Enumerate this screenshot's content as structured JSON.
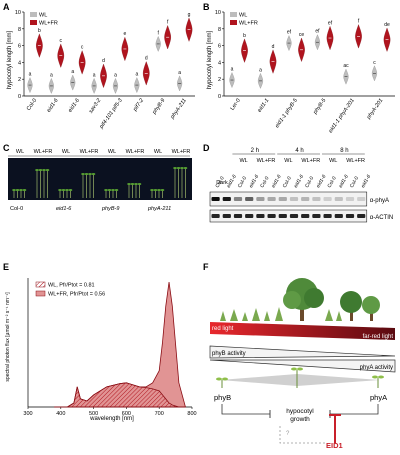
{
  "panels": {
    "A": {
      "letter": "A",
      "ylabel": "hypocotyl length [mm]",
      "legend": [
        "WL",
        "WL+FR"
      ],
      "genotypes": [
        "Col-0",
        "eid1-6",
        "eid1-6",
        "sav3-2",
        "pif4-101 pif5-3",
        "pif7-2",
        "phyB-9",
        "phyA-211"
      ],
      "yticks": [
        "0",
        "2",
        "4",
        "6",
        "8",
        "10"
      ]
    },
    "B": {
      "letter": "B",
      "ylabel": "hypocotyl length [mm]",
      "legend": [
        "WL",
        "WL+FR"
      ],
      "genotypes": [
        "Ler-0",
        "eid1-1",
        "eid1-1 phyB-5",
        "phyB-5",
        "eid1-1 phyA-201",
        "phyA-201"
      ],
      "yticks": [
        "0",
        "2",
        "4",
        "6",
        "8",
        "10"
      ]
    },
    "C": {
      "letter": "C",
      "header": [
        "WL",
        "WL+FR",
        "WL",
        "WL+FR",
        "WL",
        "WL+FR",
        "WL",
        "WL+FR"
      ],
      "labels": [
        "Col-0",
        "eid1-6",
        "phyB-9",
        "phyA-211"
      ]
    },
    "D": {
      "letter": "D",
      "times": [
        "2 h",
        "4 h",
        "8 h"
      ],
      "conds": [
        "WL",
        "WL+FR",
        "WL",
        "WL+FR",
        "WL",
        "WL+FR"
      ],
      "lanes": [
        "Col-0",
        "eid1-6",
        "Col-0",
        "eid1-6",
        "Col-0",
        "eid1-6",
        "Col-0",
        "eid1-6",
        "Col-0",
        "eid1-6",
        "Col-0",
        "eid1-6",
        "Col-0",
        "eid1-6"
      ],
      "dark": "Dark",
      "antibodies": [
        "α-phyA",
        "α-ACTIN"
      ]
    },
    "E": {
      "letter": "E",
      "ylabel": "spectral photon flux [µmol m⁻² s⁻¹ nm⁻¹]",
      "xlabel": "wavelength [nm]",
      "legend": [
        "WL, Pfr/Ptot = 0.81",
        "WL+FR, Pfr/Ptot = 0.56"
      ],
      "xticks": [
        "300",
        "400",
        "500",
        "600",
        "700",
        "800"
      ]
    },
    "F": {
      "letter": "F",
      "red_light": "red light",
      "far_red_light": "far-red light",
      "phyB_activity": "phyB activity",
      "phyA_activity": "phyA activity",
      "phyB": "phyB",
      "phyA": "phyA",
      "hypocotyl": "hypocotyl",
      "growth": "growth",
      "question": "?",
      "eid1": "EID1"
    }
  },
  "colors": {
    "wl": "#bdbdbd",
    "fr": "#b0141e",
    "red": "#c8202a"
  },
  "chart_data": [
    {
      "type": "scatter",
      "ylabel": "hypocotyl length [mm]",
      "ylim": [
        0,
        10
      ],
      "categories": [
        "Col-0",
        "eid1-6",
        "eid1-6",
        "sav3-2",
        "pif4-101 pif5-3",
        "pif7-2",
        "phyB-9",
        "phyA-211"
      ],
      "series": [
        {
          "name": "WL",
          "values": [
            1.3,
            1.2,
            1.6,
            1.2,
            1.2,
            1.3,
            6.2,
            1.5
          ]
        },
        {
          "name": "WL+FR",
          "values": [
            6.0,
            4.8,
            4.0,
            2.4,
            5.6,
            2.7,
            7.0,
            7.9
          ]
        }
      ],
      "annotations": [
        "a",
        "b",
        "a",
        "c",
        "a",
        "c",
        "a",
        "d",
        "a",
        "e",
        "a",
        "d",
        "f",
        "f",
        "a",
        "g"
      ]
    },
    {
      "type": "scatter",
      "ylabel": "hypocotyl length [mm]",
      "ylim": [
        0,
        10
      ],
      "categories": [
        "Ler-0",
        "eid1-1",
        "eid1-1 phyB-5",
        "phyB-5",
        "eid1-1 phyA-201",
        "phyA-201"
      ],
      "series": [
        {
          "name": "WL",
          "values": [
            1.9,
            1.8,
            6.3,
            6.4,
            2.3,
            2.7
          ]
        },
        {
          "name": "WL+FR",
          "values": [
            5.4,
            4.1,
            5.5,
            6.9,
            7.1,
            6.7
          ]
        }
      ],
      "annotations": [
        "a",
        "b",
        "a",
        "d",
        "ef",
        "ce",
        "ef",
        "ef",
        "ac",
        "f",
        "c",
        "de"
      ]
    },
    {
      "type": "area",
      "xlabel": "wavelength [nm]",
      "ylabel": "spectral photon flux [µmol m⁻² s⁻¹ nm⁻¹]",
      "xlim": [
        300,
        800
      ],
      "ylim": [
        0,
        0.32
      ],
      "series": [
        {
          "name": "WL, Pfr/Ptot = 0.81",
          "x": [
            380,
            420,
            440,
            450,
            460,
            480,
            500,
            540,
            580,
            600,
            640,
            660,
            680,
            700,
            710,
            720,
            730,
            740,
            760,
            780
          ],
          "values": [
            0,
            0,
            0.01,
            0.05,
            0.02,
            0.015,
            0.03,
            0.05,
            0.058,
            0.06,
            0.05,
            0.048,
            0.045,
            0.04,
            0.03,
            0.02,
            0.01,
            0.005,
            0,
            0
          ]
        },
        {
          "name": "WL+FR, Pfr/Ptot = 0.56",
          "x": [
            380,
            420,
            440,
            450,
            460,
            480,
            500,
            540,
            580,
            600,
            640,
            660,
            680,
            700,
            710,
            720,
            730,
            740,
            760,
            780
          ],
          "values": [
            0,
            0,
            0.01,
            0.05,
            0.02,
            0.015,
            0.03,
            0.05,
            0.058,
            0.06,
            0.05,
            0.05,
            0.06,
            0.09,
            0.16,
            0.25,
            0.31,
            0.25,
            0.06,
            0
          ]
        }
      ]
    }
  ]
}
